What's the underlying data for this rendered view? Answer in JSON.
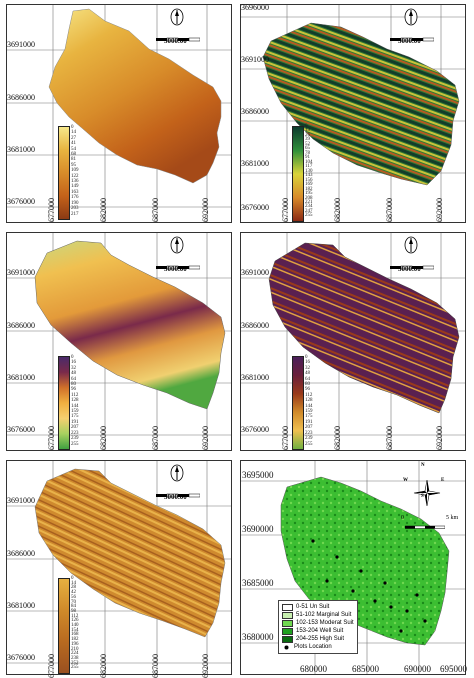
{
  "panels": [
    {
      "id": "p1",
      "ylabels": [
        "3691000",
        "3686000",
        "3681000",
        "3676000"
      ],
      "xlabels": [
        "677000",
        "682000",
        "687000",
        "692000"
      ],
      "scale": "3000.00",
      "legend_values": [
        "0",
        "14",
        "27",
        "41",
        "54",
        "68",
        "81",
        "95",
        "109",
        "122",
        "136",
        "149",
        "163",
        "176",
        "190",
        "203",
        "217"
      ],
      "gradient": [
        "#f7e88a",
        "#e8b440",
        "#d88c2a",
        "#c3621a",
        "#8b3a14"
      ]
    },
    {
      "id": "p2",
      "ylabels": [
        "3696000",
        "3691000",
        "3686000",
        "3681000",
        "3676000"
      ],
      "xlabels": [
        "677000",
        "682000",
        "687000",
        "692000"
      ],
      "scale": "3000.00",
      "legend_values": [
        "0",
        "13",
        "26",
        "39",
        "52",
        "65",
        "78",
        "91",
        "104",
        "117",
        "130",
        "143",
        "156",
        "169",
        "182",
        "195",
        "208",
        "221",
        "234",
        "247",
        "255"
      ],
      "gradient": [
        "#0d3b2e",
        "#2f8f3a",
        "#d9d43a",
        "#d88a2a",
        "#8b2a14"
      ]
    },
    {
      "id": "p3",
      "ylabels": [
        "3691000",
        "3686000",
        "3681000",
        "3676000"
      ],
      "xlabels": [
        "677000",
        "682000",
        "687000",
        "692000"
      ],
      "scale": "3000.00",
      "legend_values": [
        "0",
        "16",
        "32",
        "48",
        "64",
        "80",
        "96",
        "112",
        "128",
        "144",
        "159",
        "175",
        "191",
        "207",
        "223",
        "239",
        "255"
      ],
      "gradient": [
        "#4a2a6a",
        "#7a2a4a",
        "#d0702a",
        "#f0b040",
        "#f5d070",
        "#a8d060",
        "#40a040"
      ]
    },
    {
      "id": "p4",
      "ylabels": [
        "3691000",
        "3686000",
        "3681000",
        "3676000"
      ],
      "xlabels": [
        "677000",
        "682000",
        "687000",
        "692000"
      ],
      "scale": "3000.00",
      "legend_values": [
        "0",
        "16",
        "32",
        "48",
        "64",
        "80",
        "96",
        "112",
        "128",
        "144",
        "159",
        "175",
        "191",
        "207",
        "223",
        "239",
        "255"
      ],
      "gradient": [
        "#4a1f5a",
        "#6a1f3a",
        "#9a3a1a",
        "#d08a2a",
        "#f0c050",
        "#70b040"
      ]
    },
    {
      "id": "p5",
      "ylabels": [
        "3691000",
        "3686000",
        "3681000",
        "3676000"
      ],
      "xlabels": [
        "677000",
        "682000",
        "687000",
        "692000"
      ],
      "scale": "3000.00",
      "legend_values": [
        "0",
        "14",
        "28",
        "42",
        "56",
        "70",
        "84",
        "98",
        "112",
        "126",
        "140",
        "154",
        "168",
        "182",
        "196",
        "210",
        "224",
        "238",
        "252",
        "255"
      ],
      "gradient": [
        "#e6b040",
        "#d08a2a",
        "#b86a20",
        "#9a5020"
      ]
    }
  ],
  "suitability_panel": {
    "ylabels": [
      "3695000",
      "3690000",
      "3685000",
      "3680000"
    ],
    "xlabels": [
      "680000",
      "685000",
      "690000",
      "695000"
    ],
    "scale_labels": [
      "0",
      "5 km"
    ],
    "compass": {
      "n": "N",
      "s": "S",
      "e": "E",
      "w": "W"
    },
    "legend": [
      {
        "label": "0-51 Un Suit",
        "color": "#ffffff"
      },
      {
        "label": "51-102 Marginal Suit",
        "color": "#c8f0b0"
      },
      {
        "label": "102-153 Moderat Suit",
        "color": "#70d850"
      },
      {
        "label": "153-204 Well Suit",
        "color": "#20a020"
      },
      {
        "label": "204-255 High Suit",
        "color": "#0a6a10"
      },
      {
        "label": "Plots Location",
        "color": "#000000"
      }
    ]
  }
}
